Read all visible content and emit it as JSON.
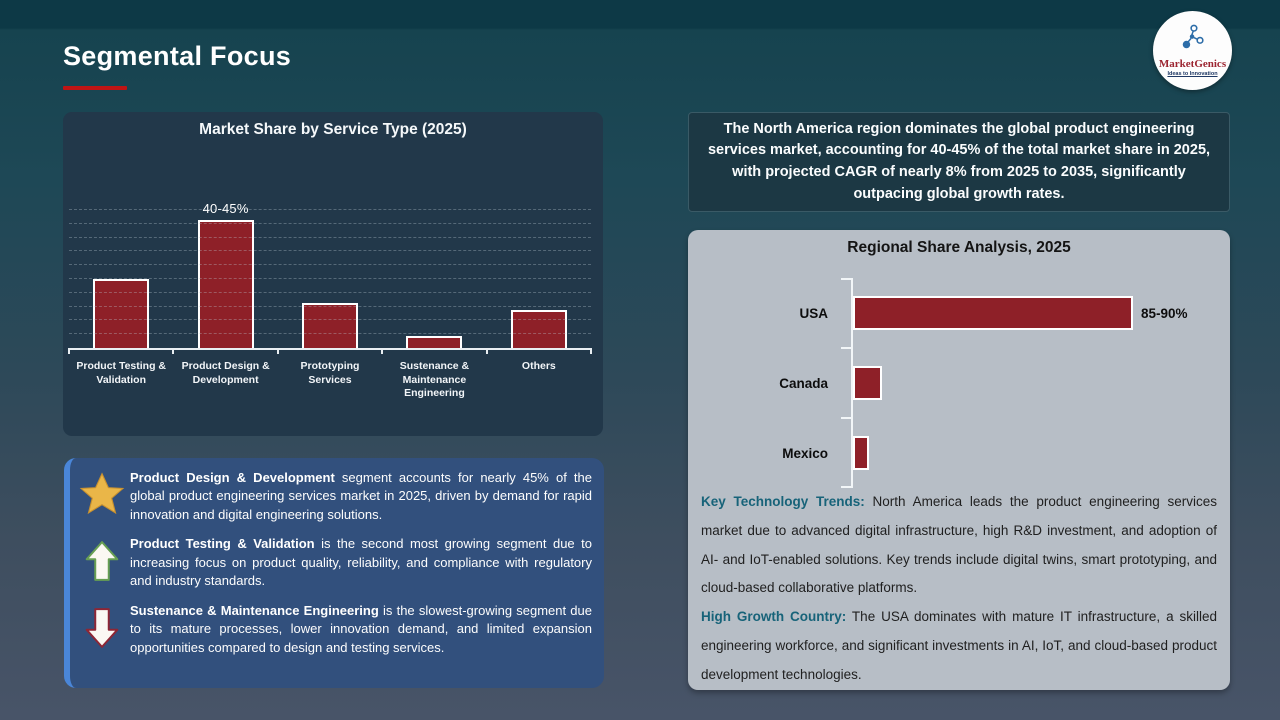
{
  "slide": {
    "title": "Segmental Focus"
  },
  "logo": {
    "name": "MarketGenics",
    "tagline": "Ideas to Innovation"
  },
  "callout": {
    "text": "The North America region dominates the global product engineering services market, accounting for 40-45% of the total market share in 2025, with projected CAGR of nearly 8% from 2025 to 2035, significantly outpacing global growth rates."
  },
  "chart_data": [
    {
      "type": "bar",
      "title": "Market Share by Service Type (2025)",
      "categories": [
        "Product Testing & Validation",
        "Product Design & Development",
        "Prototyping Services",
        "Sustenance & Maintenance Engineering",
        "Others"
      ],
      "values": [
        23,
        42.5,
        15,
        4,
        12.5
      ],
      "data_labels": [
        "",
        "40-45%",
        "",
        "",
        ""
      ],
      "xlabel": "",
      "ylabel": "",
      "ylim": [
        0,
        65
      ],
      "grid": "horizontal-dashed",
      "legend": "none",
      "bar_color": "#8E2028",
      "bar_border": "#FFFFFF"
    },
    {
      "type": "bar-horizontal",
      "title": "Regional Share Analysis, 2025",
      "categories": [
        "USA",
        "Canada",
        "Mexico"
      ],
      "values": [
        87.5,
        9,
        5
      ],
      "data_labels": [
        "85-90%",
        "",
        ""
      ],
      "xlabel": "",
      "ylabel": "",
      "xlim": [
        0,
        100
      ],
      "grid": "off",
      "legend": "none",
      "bar_color": "#8E2028",
      "bar_border": "#FFFFFF"
    }
  ],
  "insights": [
    {
      "icon": "star-icon",
      "lead": "Product Design & Development",
      "text": " segment accounts for nearly 45% of the global product engineering services market in 2025, driven by demand for rapid innovation and digital engineering solutions."
    },
    {
      "icon": "up-arrow-icon",
      "lead": "Product Testing & Validation",
      "text": " is the second most growing segment due to increasing focus on product quality, reliability, and compliance with regulatory and industry standards."
    },
    {
      "icon": "down-arrow-icon",
      "lead": "Sustenance & Maintenance Engineering",
      "text": " is the slowest-growing segment due to its mature processes, lower innovation demand, and limited expansion opportunities compared to design and testing services."
    }
  ],
  "regional_notes": [
    {
      "lead": "Key Technology Trends:",
      "text": " North America leads the product engineering services market due to advanced digital infrastructure, high R&D investment, and adoption of AI- and IoT-enabled solutions. Key trends include digital twins, smart prototyping, and cloud-based collaborative platforms."
    },
    {
      "lead": "High Growth Country:",
      "text": " The USA dominates with mature IT infrastructure, a skilled engineering workforce, and significant investments in AI, IoT, and cloud-based product development technologies."
    }
  ],
  "colors": {
    "bar": "#8E2028",
    "accent_red": "#C01414",
    "dark_panel": "#22384A",
    "callout_panel": "#1C3844",
    "silver_panel": "#B7BEC6",
    "insight_box": "#32507D",
    "insight_accent": "#4A86D8",
    "note_lead_teal": "#176379",
    "star_gold": "#EAB648"
  }
}
